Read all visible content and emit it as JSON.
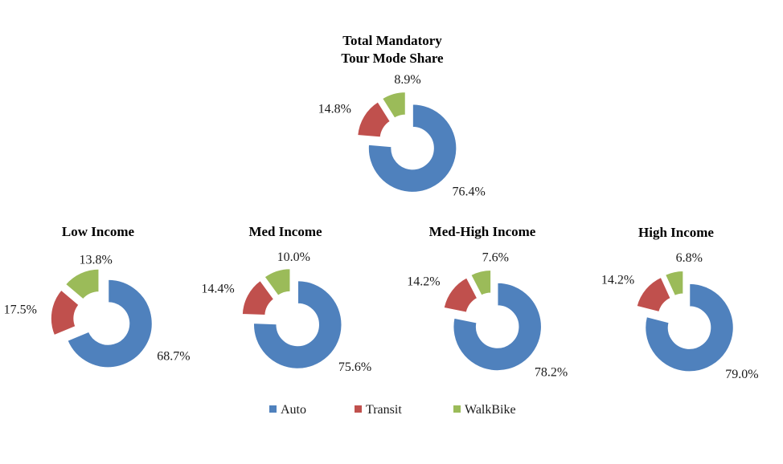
{
  "chart_data": {
    "type": "pie",
    "variant": "exploded-donut",
    "legend_position": "bottom",
    "legend": [
      {
        "name": "Auto",
        "color": "#4F81BD"
      },
      {
        "name": "Transit",
        "color": "#C0504D"
      },
      {
        "name": "WalkBike",
        "color": "#9BBB59"
      }
    ],
    "charts": [
      {
        "title_lines": [
          "Total Mandatory",
          "Tour Mode Share"
        ],
        "slices": [
          {
            "series": "Auto",
            "value": 76.4,
            "label": "76.4%"
          },
          {
            "series": "Transit",
            "value": 14.8,
            "label": "14.8%"
          },
          {
            "series": "WalkBike",
            "value": 8.9,
            "label": "8.9%"
          }
        ]
      },
      {
        "title_lines": [
          "Low Income"
        ],
        "slices": [
          {
            "series": "Auto",
            "value": 68.7,
            "label": "68.7%"
          },
          {
            "series": "Transit",
            "value": 17.5,
            "label": "17.5%"
          },
          {
            "series": "WalkBike",
            "value": 13.8,
            "label": "13.8%"
          }
        ]
      },
      {
        "title_lines": [
          "Med Income"
        ],
        "slices": [
          {
            "series": "Auto",
            "value": 75.6,
            "label": "75.6%"
          },
          {
            "series": "Transit",
            "value": 14.4,
            "label": "14.4%"
          },
          {
            "series": "WalkBike",
            "value": 10.0,
            "label": "10.0%"
          }
        ]
      },
      {
        "title_lines": [
          "Med-High Income"
        ],
        "slices": [
          {
            "series": "Auto",
            "value": 78.2,
            "label": "78.2%"
          },
          {
            "series": "Transit",
            "value": 14.2,
            "label": "14.2%"
          },
          {
            "series": "WalkBike",
            "value": 7.6,
            "label": "7.6%"
          }
        ]
      },
      {
        "title_lines": [
          "High Income"
        ],
        "slices": [
          {
            "series": "Auto",
            "value": 79.0,
            "label": "79.0%"
          },
          {
            "series": "Transit",
            "value": 14.2,
            "label": "14.2%"
          },
          {
            "series": "WalkBike",
            "value": 6.8,
            "label": "6.8%"
          }
        ]
      }
    ]
  }
}
